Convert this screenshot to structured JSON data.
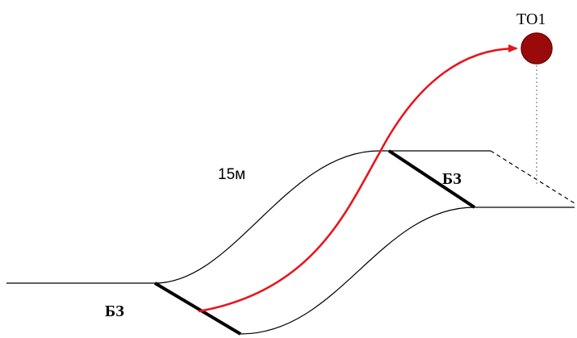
{
  "labels": {
    "target": "ТО1",
    "height": "15м",
    "zone_upper": "БЗ",
    "zone_lower": "БЗ"
  },
  "colors": {
    "trajectory": "#e8141b",
    "target_fill": "#9b0a0a",
    "target_stroke": "#6e0606",
    "outline": "#000000",
    "guide": "#555555"
  }
}
